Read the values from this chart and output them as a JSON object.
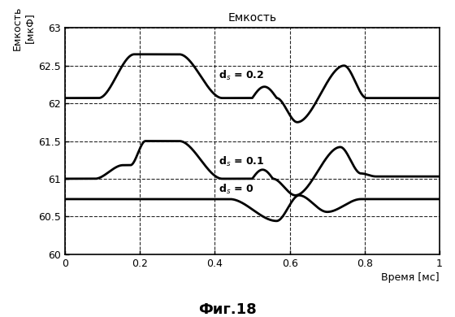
{
  "title": "Емкость",
  "ylabel": "Емкость\n[мкФ]",
  "xlabel": "Время [мс]",
  "figure_caption": "Фиг.18",
  "xlim": [
    0,
    1
  ],
  "ylim": [
    60,
    63
  ],
  "yticks": [
    60,
    60.5,
    61,
    61.5,
    62,
    62.5,
    63
  ],
  "xticks": [
    0,
    0.2,
    0.4,
    0.6,
    0.8,
    1.0
  ],
  "line_color": "#000000",
  "labels": {
    "d0": "d$_s$ = 0",
    "d01": "d$_s$ = 0.1",
    "d02": "d$_s$ = 0.2"
  },
  "label_pos": {
    "d02": [
      0.41,
      62.33
    ],
    "d01": [
      0.41,
      61.18
    ],
    "d0": [
      0.41,
      60.82
    ]
  }
}
